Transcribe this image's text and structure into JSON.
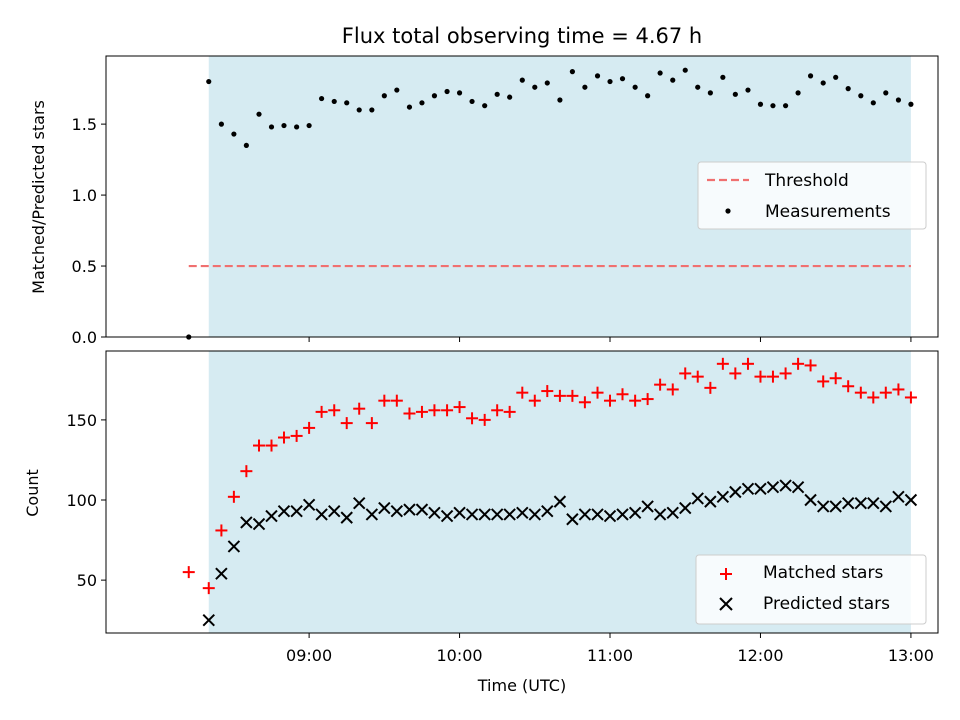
{
  "title": "Flux total observing time = 4.67 h",
  "chart_data": [
    {
      "type": "scatter",
      "ylabel": "Matched/Predicted stars",
      "ylim": [
        0,
        1.98
      ],
      "yticks": [
        0.0,
        0.5,
        1.0,
        1.5
      ],
      "ytick_labels": [
        "0.0",
        "0.5",
        "1.0",
        "1.5"
      ],
      "grid": false,
      "legend_position": "center-right",
      "observing_span": [
        8.333,
        13.0
      ],
      "threshold": {
        "name": "Threshold",
        "value": 0.5,
        "x_range": [
          8.2,
          13.0
        ],
        "color": "#f07070"
      },
      "series": [
        {
          "name": "Measurements",
          "color": "#000000",
          "x": [
            8.2,
            8.333,
            8.417,
            8.5,
            8.583,
            8.667,
            8.75,
            8.833,
            8.917,
            9.0,
            9.083,
            9.167,
            9.25,
            9.333,
            9.417,
            9.5,
            9.583,
            9.667,
            9.75,
            9.833,
            9.917,
            10.0,
            10.083,
            10.167,
            10.25,
            10.333,
            10.417,
            10.5,
            10.583,
            10.667,
            10.75,
            10.833,
            10.917,
            11.0,
            11.083,
            11.167,
            11.25,
            11.333,
            11.417,
            11.5,
            11.583,
            11.667,
            11.75,
            11.833,
            11.917,
            12.0,
            12.083,
            12.167,
            12.25,
            12.333,
            12.417,
            12.5,
            12.583,
            12.667,
            12.75,
            12.833,
            12.917,
            13.0
          ],
          "y": [
            0.0,
            1.8,
            1.5,
            1.43,
            1.35,
            1.57,
            1.48,
            1.49,
            1.48,
            1.49,
            1.68,
            1.66,
            1.65,
            1.6,
            1.6,
            1.7,
            1.74,
            1.62,
            1.65,
            1.7,
            1.73,
            1.72,
            1.66,
            1.63,
            1.71,
            1.69,
            1.81,
            1.76,
            1.79,
            1.67,
            1.87,
            1.76,
            1.84,
            1.8,
            1.82,
            1.76,
            1.7,
            1.86,
            1.81,
            1.88,
            1.76,
            1.72,
            1.83,
            1.71,
            1.74,
            1.64,
            1.63,
            1.63,
            1.72,
            1.84,
            1.79,
            1.83,
            1.75,
            1.7,
            1.65,
            1.72,
            1.67,
            1.64
          ]
        }
      ]
    },
    {
      "type": "scatter",
      "xlabel": "Time (UTC)",
      "ylabel": "Count",
      "xlim": [
        7.65,
        13.18
      ],
      "ylim": [
        17,
        193
      ],
      "xticks": [
        9,
        10,
        11,
        12,
        13
      ],
      "xtick_labels": [
        "09:00",
        "10:00",
        "11:00",
        "12:00",
        "13:00"
      ],
      "yticks": [
        50,
        100,
        150
      ],
      "ytick_labels": [
        "50",
        "100",
        "150"
      ],
      "grid": false,
      "legend_position": "bottom-right",
      "observing_span": [
        8.333,
        13.0
      ],
      "series": [
        {
          "name": "Matched stars",
          "marker": "plus",
          "color": "#ff0000",
          "x": [
            8.2,
            8.333,
            8.417,
            8.5,
            8.583,
            8.667,
            8.75,
            8.833,
            8.917,
            9.0,
            9.083,
            9.167,
            9.25,
            9.333,
            9.417,
            9.5,
            9.583,
            9.667,
            9.75,
            9.833,
            9.917,
            10.0,
            10.083,
            10.167,
            10.25,
            10.333,
            10.417,
            10.5,
            10.583,
            10.667,
            10.75,
            10.833,
            10.917,
            11.0,
            11.083,
            11.167,
            11.25,
            11.333,
            11.417,
            11.5,
            11.583,
            11.667,
            11.75,
            11.833,
            11.917,
            12.0,
            12.083,
            12.167,
            12.25,
            12.333,
            12.417,
            12.5,
            12.583,
            12.667,
            12.75,
            12.833,
            12.917,
            13.0
          ],
          "y": [
            55,
            45,
            81,
            102,
            118,
            134,
            134,
            139,
            140,
            145,
            155,
            156,
            148,
            157,
            148,
            162,
            162,
            154,
            155,
            156,
            156,
            158,
            151,
            150,
            156,
            155,
            167,
            162,
            168,
            165,
            165,
            161,
            167,
            162,
            166,
            162,
            163,
            172,
            169,
            179,
            177,
            170,
            185,
            179,
            185,
            177,
            177,
            179,
            185,
            184,
            174,
            176,
            171,
            167,
            164,
            167,
            169,
            164
          ]
        },
        {
          "name": "Predicted stars",
          "marker": "x",
          "color": "#000000",
          "x": [
            8.333,
            8.417,
            8.5,
            8.583,
            8.667,
            8.75,
            8.833,
            8.917,
            9.0,
            9.083,
            9.167,
            9.25,
            9.333,
            9.417,
            9.5,
            9.583,
            9.667,
            9.75,
            9.833,
            9.917,
            10.0,
            10.083,
            10.167,
            10.25,
            10.333,
            10.417,
            10.5,
            10.583,
            10.667,
            10.75,
            10.833,
            10.917,
            11.0,
            11.083,
            11.167,
            11.25,
            11.333,
            11.417,
            11.5,
            11.583,
            11.667,
            11.75,
            11.833,
            11.917,
            12.0,
            12.083,
            12.167,
            12.25,
            12.333,
            12.417,
            12.5,
            12.583,
            12.667,
            12.75,
            12.833,
            12.917,
            13.0
          ],
          "y": [
            25,
            54,
            71,
            86,
            85,
            90,
            93,
            93,
            97,
            91,
            93,
            89,
            98,
            91,
            95,
            93,
            94,
            94,
            92,
            90,
            92,
            91,
            91,
            91,
            91,
            92,
            91,
            93,
            99,
            88,
            91,
            91,
            90,
            91,
            92,
            96,
            91,
            92,
            95,
            101,
            99,
            102,
            105,
            107,
            107,
            108,
            109,
            108,
            100,
            96,
            96,
            98,
            98,
            98,
            96,
            102,
            100
          ]
        }
      ]
    }
  ]
}
